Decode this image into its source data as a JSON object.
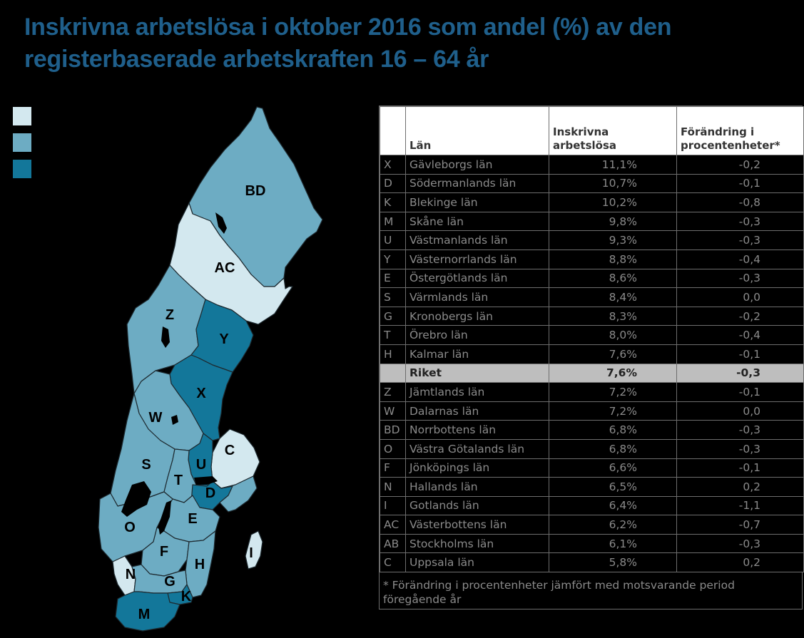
{
  "title": "Inskrivna arbetslösa i oktober 2016 som andel (%) av den registerbaserade arbetskraften 16 – 64 år",
  "colors": {
    "light": "#D3E8EF",
    "medium": "#6DACC3",
    "dark": "#13779A",
    "title": "#1F5F8B"
  },
  "legend": [
    {
      "label": "",
      "color": "#D3E8EF"
    },
    {
      "label": "",
      "color": "#6DACC3"
    },
    {
      "label": "",
      "color": "#13779A"
    }
  ],
  "map": {
    "labels": {
      "BD": "BD",
      "AC": "AC",
      "Z": "Z",
      "Y": "Y",
      "X": "X",
      "W": "W",
      "C": "C",
      "U": "U",
      "S": "S",
      "T": "T",
      "D": "D",
      "O": "O",
      "E": "E",
      "F": "F",
      "I": "I",
      "N": "N",
      "G": "G",
      "H": "H",
      "K": "K",
      "M": "M"
    }
  },
  "table": {
    "headers": {
      "code": "",
      "lan": "Län",
      "rate": "Inskrivna arbetslösa",
      "change": "Förändring i procentenheter*"
    },
    "rows": [
      {
        "code": "X",
        "name": "Gävleborgs län",
        "rate": "11,1%",
        "change": "-0,2"
      },
      {
        "code": "D",
        "name": "Södermanlands län",
        "rate": "10,7%",
        "change": "-0,1"
      },
      {
        "code": "K",
        "name": "Blekinge län",
        "rate": "10,2%",
        "change": "-0,8"
      },
      {
        "code": "M",
        "name": "Skåne län",
        "rate": "9,8%",
        "change": "-0,3"
      },
      {
        "code": "U",
        "name": "Västmanlands län",
        "rate": "9,3%",
        "change": "-0,3"
      },
      {
        "code": "Y",
        "name": "Västernorrlands län",
        "rate": "8,8%",
        "change": "-0,4"
      },
      {
        "code": "E",
        "name": "Östergötlands län",
        "rate": "8,6%",
        "change": "-0,3"
      },
      {
        "code": "S",
        "name": "Värmlands län",
        "rate": "8,4%",
        "change": "0,0"
      },
      {
        "code": "G",
        "name": "Kronobergs län",
        "rate": "8,3%",
        "change": "-0,2"
      },
      {
        "code": "T",
        "name": "Örebro län",
        "rate": "8,0%",
        "change": "-0,4"
      },
      {
        "code": "H",
        "name": "Kalmar län",
        "rate": "7,6%",
        "change": "-0,1"
      },
      {
        "code": "",
        "name": "Riket",
        "rate": "7,6%",
        "change": "-0,3",
        "total": true
      },
      {
        "code": "Z",
        "name": "Jämtlands län",
        "rate": "7,2%",
        "change": "-0,1"
      },
      {
        "code": "W",
        "name": "Dalarnas län",
        "rate": "7,2%",
        "change": "0,0"
      },
      {
        "code": "BD",
        "name": "Norrbottens län",
        "rate": "6,8%",
        "change": "-0,3"
      },
      {
        "code": "O",
        "name": "Västra Götalands län",
        "rate": "6,8%",
        "change": "-0,3"
      },
      {
        "code": "F",
        "name": "Jönköpings län",
        "rate": "6,6%",
        "change": "-0,1"
      },
      {
        "code": "N",
        "name": "Hallands län",
        "rate": "6,5%",
        "change": "0,2"
      },
      {
        "code": "I",
        "name": "Gotlands län",
        "rate": "6,4%",
        "change": "-1,1"
      },
      {
        "code": "AC",
        "name": "Västerbottens län",
        "rate": "6,2%",
        "change": "-0,7"
      },
      {
        "code": "AB",
        "name": "Stockholms län",
        "rate": "6,1%",
        "change": "-0,3"
      },
      {
        "code": "C",
        "name": "Uppsala län",
        "rate": "5,8%",
        "change": "0,2"
      }
    ],
    "footnote": "* Förändring i procentenheter jämfört med motsvarande period föregående år"
  }
}
